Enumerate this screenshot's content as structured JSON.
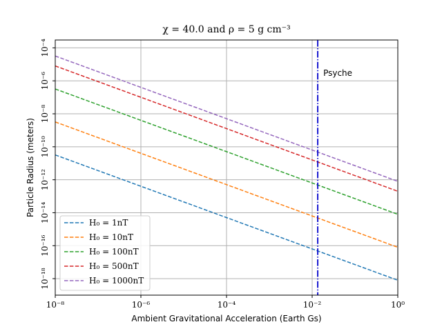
{
  "chart_data": {
    "type": "line",
    "title": "χ = 40.0 and ρ = 5 g cm⁻³",
    "xlabel": "Ambient Gravitational Acceleration (Earth Gs)",
    "ylabel": "Particle Radius (meters)",
    "xscale": "log",
    "yscale": "log",
    "xlim": [
      1e-08,
      1
    ],
    "ylim": [
      1e-19,
      0.0003
    ],
    "grid": true,
    "legend_position": "lower-left",
    "x_ticks": [
      {
        "value": 1e-08,
        "label": "10⁻⁸"
      },
      {
        "value": 1e-06,
        "label": "10⁻⁶"
      },
      {
        "value": 0.0001,
        "label": "10⁻⁴"
      },
      {
        "value": 0.01,
        "label": "10⁻²"
      },
      {
        "value": 1,
        "label": "10⁰"
      }
    ],
    "y_ticks": [
      {
        "value": 0.0001,
        "label": "10⁻⁴"
      },
      {
        "value": 1e-06,
        "label": "10⁻⁶"
      },
      {
        "value": 1e-08,
        "label": "10⁻⁸"
      },
      {
        "value": 1e-10,
        "label": "10⁻¹⁰"
      },
      {
        "value": 1e-12,
        "label": "10⁻¹²"
      },
      {
        "value": 1e-14,
        "label": "10⁻¹⁴"
      },
      {
        "value": 1e-16,
        "label": "10⁻¹⁶"
      },
      {
        "value": 1e-18,
        "label": "10⁻¹⁸"
      }
    ],
    "series": [
      {
        "name": "H₀ = 1nT",
        "color": "#1f77b4",
        "x": [
          1e-08,
          1
        ],
        "y": [
          3.2e-11,
          8e-19
        ]
      },
      {
        "name": "H₀ = 10nT",
        "color": "#ff7f0e",
        "x": [
          1e-08,
          1
        ],
        "y": [
          3.2e-09,
          8e-17
        ]
      },
      {
        "name": "H₀ = 100nT",
        "color": "#2ca02c",
        "x": [
          1e-08,
          1
        ],
        "y": [
          3.2e-07,
          8e-15
        ]
      },
      {
        "name": "H₀ = 500nT",
        "color": "#d62728",
        "x": [
          1e-08,
          1
        ],
        "y": [
          8e-06,
          2e-13
        ]
      },
      {
        "name": "H₀ = 1000nT",
        "color": "#9467bd",
        "x": [
          1e-08,
          1
        ],
        "y": [
          3.2e-05,
          8e-13
        ]
      }
    ],
    "annotations": [
      {
        "type": "vline",
        "x": 0.0135,
        "label": "Psyche",
        "color": "#0000cc",
        "style": "dashdot"
      }
    ]
  }
}
